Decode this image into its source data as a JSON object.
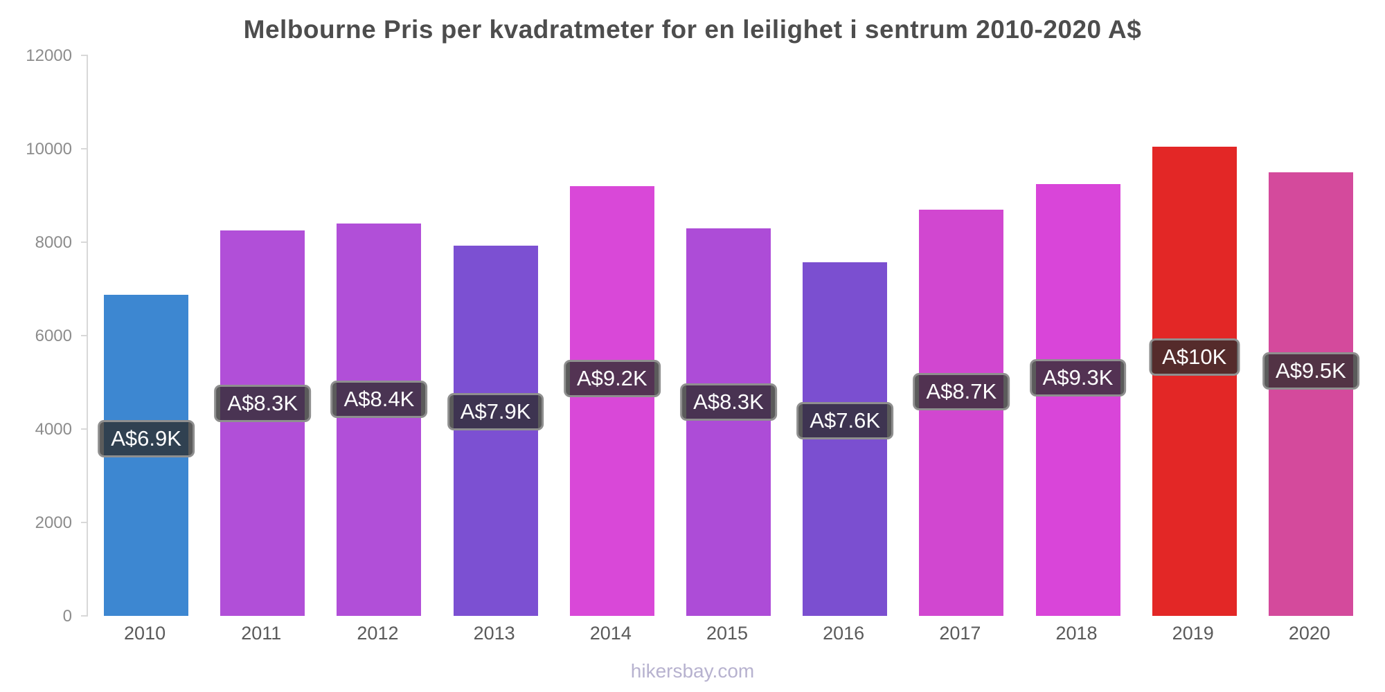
{
  "title": "Melbourne Pris per kvadratmeter for en leilighet i sentrum 2010-2020 A$",
  "footer": "hikersbay.com",
  "chart_data": {
    "type": "bar",
    "title": "Melbourne Pris per kvadratmeter for en leilighet i sentrum 2010-2020 A$",
    "xlabel": "",
    "ylabel": "",
    "ylim": [
      0,
      12000
    ],
    "yticks": [
      0,
      2000,
      4000,
      6000,
      8000,
      10000,
      12000
    ],
    "grid": false,
    "legend": false,
    "categories": [
      "2010",
      "2011",
      "2012",
      "2013",
      "2014",
      "2015",
      "2016",
      "2017",
      "2018",
      "2019",
      "2020"
    ],
    "values": [
      6880,
      8250,
      8400,
      7920,
      9200,
      8300,
      7570,
      8700,
      9250,
      10050,
      9500
    ],
    "data_labels": [
      "A$6.9K",
      "A$8.3K",
      "A$8.4K",
      "A$7.9K",
      "A$9.2K",
      "A$8.3K",
      "A$7.6K",
      "A$8.7K",
      "A$9.3K",
      "A$10K",
      "A$9.5K"
    ],
    "bar_colors": [
      "#3d87d1",
      "#b14fd8",
      "#b14fd8",
      "#7c50d2",
      "#d948d8",
      "#ad4cd7",
      "#7b4fd0",
      "#d147d0",
      "#d945d9",
      "#e32726",
      "#d44a9c"
    ],
    "label_box_bg": "#2d2d2d",
    "label_box_border": "#8f8f8f",
    "label_text_color": "#ffffff"
  }
}
